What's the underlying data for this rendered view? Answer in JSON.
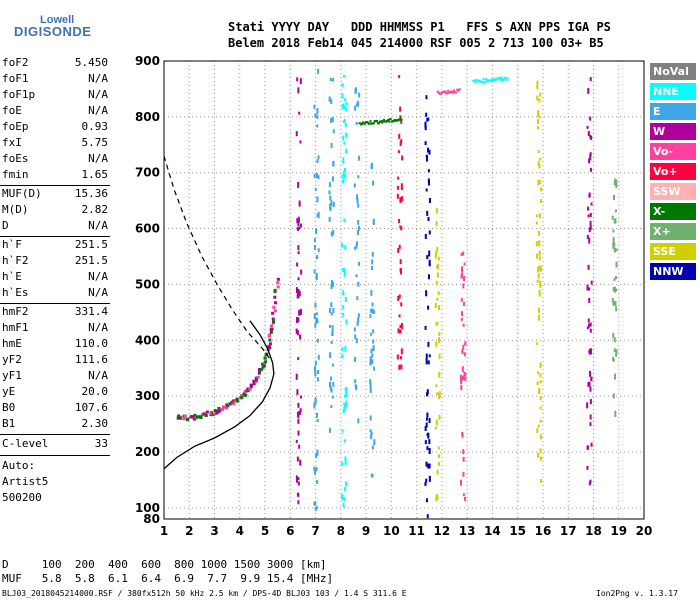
{
  "logo": {
    "top": "Lowell",
    "bottom": "DIGISONDE"
  },
  "header": {
    "line1": "Stati YYYY DAY   DDD HHMMSS P1   FFS S AXN PPS IGA PS",
    "line2": "Belem 2018 Feb14 045 214000 RSF 005 2 713 100 03+ B5"
  },
  "parameters": {
    "group1": [
      {
        "label": "foF2",
        "value": "5.450"
      },
      {
        "label": "foF1",
        "value": "N/A"
      },
      {
        "label": "foF1p",
        "value": "N/A"
      },
      {
        "label": "foE",
        "value": "N/A"
      },
      {
        "label": "foEp",
        "value": "0.93"
      },
      {
        "label": "fxI",
        "value": "5.75"
      },
      {
        "label": "foEs",
        "value": "N/A"
      },
      {
        "label": "fmin",
        "value": "1.65"
      }
    ],
    "group2": [
      {
        "label": "MUF(D)",
        "value": "15.36"
      },
      {
        "label": "M(D)",
        "value": "2.82"
      },
      {
        "label": "D",
        "value": "N/A"
      }
    ],
    "group3": [
      {
        "label": "h`F",
        "value": "251.5"
      },
      {
        "label": "h`F2",
        "value": "251.5"
      },
      {
        "label": "h`E",
        "value": "N/A"
      },
      {
        "label": "h`Es",
        "value": "N/A"
      }
    ],
    "group4": [
      {
        "label": "hmF2",
        "value": "331.4"
      },
      {
        "label": "hmF1",
        "value": "N/A"
      },
      {
        "label": "hmE",
        "value": "110.0"
      },
      {
        "label": "yF2",
        "value": "111.6"
      },
      {
        "label": "yF1",
        "value": "N/A"
      },
      {
        "label": "yE",
        "value": "20.0"
      },
      {
        "label": "B0",
        "value": "107.6"
      },
      {
        "label": "B1",
        "value": "2.30"
      }
    ],
    "clevel": {
      "label": "C-level",
      "value": "33"
    }
  },
  "auto": {
    "line1": "Auto:",
    "line2": "Artist5",
    "line3": "500200"
  },
  "legend": [
    {
      "label": "NoVal",
      "color": "#808080"
    },
    {
      "label": "NNE",
      "color": "#00ffff"
    },
    {
      "label": "E",
      "color": "#3fa6e6"
    },
    {
      "label": "W",
      "color": "#b0009b"
    },
    {
      "label": "Vo-",
      "color": "#ff40a0"
    },
    {
      "label": "Vo+",
      "color": "#ff0040"
    },
    {
      "label": "SSW",
      "color": "#ffb0b0"
    },
    {
      "label": "X-",
      "color": "#007800"
    },
    {
      "label": "X+",
      "color": "#70b070"
    },
    {
      "label": "SSE",
      "color": "#d0d000"
    },
    {
      "label": "NNW",
      "color": "#0000b0"
    }
  ],
  "chart_data": {
    "type": "scatter",
    "title": "",
    "xlabel": "",
    "ylabel": "",
    "xlim": [
      1,
      20
    ],
    "ylim": [
      80,
      900
    ],
    "xticks": [
      1,
      2,
      3,
      4,
      5,
      6,
      7,
      8,
      9,
      10,
      11,
      12,
      13,
      14,
      15,
      16,
      17,
      18,
      19,
      20
    ],
    "yticks": [
      100,
      200,
      300,
      400,
      500,
      600,
      700,
      800,
      900
    ],
    "grid": true,
    "solid_profile": {
      "x": [
        1.0,
        1.5,
        2.2,
        3.0,
        3.8,
        4.4,
        4.9,
        5.2,
        5.35,
        5.3,
        5.1,
        4.8,
        4.4
      ],
      "y": [
        170,
        190,
        210,
        225,
        245,
        265,
        290,
        315,
        340,
        360,
        385,
        410,
        435
      ]
    },
    "dashed_profile": {
      "x": [
        1.0,
        1.4,
        1.9,
        2.5,
        3.1,
        3.7,
        4.3,
        4.9,
        5.3
      ],
      "y": [
        730,
        670,
        610,
        550,
        500,
        455,
        415,
        385,
        360
      ]
    },
    "o_trace": {
      "x": [
        1.5,
        2.0,
        2.5,
        3.0,
        3.5,
        4.0,
        4.4,
        4.8,
        5.1,
        5.3,
        5.5
      ],
      "y": [
        262,
        262,
        266,
        272,
        283,
        297,
        315,
        345,
        385,
        435,
        520
      ]
    },
    "clusters": [
      {
        "x": 6.3,
        "y1": 85,
        "y2": 895,
        "color": "#b0009b"
      },
      {
        "x": 7.0,
        "y1": 100,
        "y2": 890,
        "color": "#3fa6e6"
      },
      {
        "x": 7.6,
        "y1": 240,
        "y2": 880,
        "color": "#3fa6e6"
      },
      {
        "x": 8.1,
        "y1": 100,
        "y2": 890,
        "color": "#00ffff"
      },
      {
        "x": 8.6,
        "y1": 250,
        "y2": 870,
        "color": "#3fa6e6"
      },
      {
        "x": 9.2,
        "y1": 160,
        "y2": 740,
        "color": "#3fa6e6"
      },
      {
        "x": 10.3,
        "y1": 340,
        "y2": 890,
        "color": "#ff0040"
      },
      {
        "x": 11.4,
        "y1": 85,
        "y2": 840,
        "color": "#0000b0"
      },
      {
        "x": 11.8,
        "y1": 120,
        "y2": 640,
        "color": "#d0d000"
      },
      {
        "x": 12.8,
        "y1": 100,
        "y2": 560,
        "color": "#ff40a0"
      },
      {
        "x": 15.8,
        "y1": 150,
        "y2": 880,
        "color": "#d0d000"
      },
      {
        "x": 17.8,
        "y1": 90,
        "y2": 880,
        "color": "#b0009b"
      },
      {
        "x": 18.8,
        "y1": 260,
        "y2": 700,
        "color": "#70b070"
      }
    ],
    "bands": [
      {
        "x1": 8.7,
        "x2": 10.4,
        "y": 790,
        "color": "#007800"
      },
      {
        "x1": 11.8,
        "x2": 12.7,
        "y": 845,
        "color": "#ff40a0"
      },
      {
        "x1": 13.2,
        "x2": 14.6,
        "y": 865,
        "color": "#00ffff"
      }
    ]
  },
  "bottom_table": {
    "d_row": "D     100  200  400  600  800 1000 1500 3000 [km]",
    "muf_row": "MUF   5.8  5.8  6.1  6.4  6.9  7.7  9.9 15.4 [MHz]"
  },
  "footer": {
    "left": "BLJ03_2018045214000.RSF / 380fx512h 50 kHz 2.5 km / DPS-4D BLJ03 103 / 1.4 S 311.6 E",
    "right": "Ion2Png v. 1.3.17"
  }
}
